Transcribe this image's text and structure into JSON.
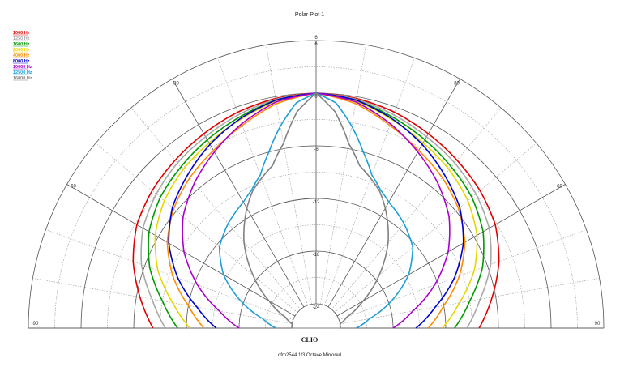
{
  "chart_data": {
    "type": "polar",
    "title": "Polar Plot 1",
    "footer": "dfm2544  1/3 Octave  Mirrored",
    "logo": "CLIO",
    "radial_ticks": [
      "6",
      "0",
      "-6",
      "-12",
      "-18",
      "-24"
    ],
    "outer_label": "6",
    "angle_labels": [
      {
        "angle": -90,
        "label": "-90"
      },
      {
        "angle": -60,
        "label": "-60"
      },
      {
        "angle": -30,
        "label": "-30"
      },
      {
        "angle": 30,
        "label": "30"
      },
      {
        "angle": 60,
        "label": "60"
      },
      {
        "angle": 90,
        "label": "90"
      }
    ],
    "r_range_db": [
      -24,
      6
    ],
    "angle_range_deg": [
      -90,
      90
    ],
    "mirrored": true,
    "grid": true,
    "legend_position": "top-left",
    "series": [
      {
        "name": "1000 Hz",
        "color": "#e00000",
        "angles": [
          0,
          10,
          20,
          30,
          40,
          50,
          60,
          70,
          80,
          90
        ],
        "values": [
          0,
          -0.2,
          -0.6,
          -1.2,
          -1.8,
          -2.4,
          -3.2,
          -4.6,
          -6.4,
          -8.2
        ]
      },
      {
        "name": "1250 Hz",
        "color": "#a8a8a8",
        "angles": [
          0,
          10,
          20,
          30,
          40,
          50,
          60,
          70,
          80,
          90
        ],
        "values": [
          0,
          -0.3,
          -0.9,
          -1.6,
          -2.2,
          -3.0,
          -4.0,
          -5.6,
          -7.8,
          -9.6
        ]
      },
      {
        "name": "1600 Hz",
        "color": "#009900",
        "angles": [
          0,
          10,
          20,
          30,
          40,
          50,
          60,
          70,
          80,
          90
        ],
        "values": [
          0,
          -0.4,
          -1.2,
          -2.0,
          -2.8,
          -3.6,
          -4.8,
          -6.6,
          -9.0,
          -11.0
        ]
      },
      {
        "name": "2000 Hz",
        "color": "#e6d600",
        "angles": [
          0,
          10,
          20,
          30,
          40,
          50,
          60,
          70,
          80,
          90
        ],
        "values": [
          0,
          -0.5,
          -1.5,
          -2.4,
          -3.2,
          -4.2,
          -5.6,
          -7.6,
          -10.2,
          -12.4
        ]
      },
      {
        "name": "4000 Hz",
        "color": "#ff8c00",
        "angles": [
          0,
          10,
          20,
          30,
          40,
          50,
          60,
          70,
          80,
          90
        ],
        "values": [
          0,
          -0.8,
          -2.2,
          -3.4,
          -4.4,
          -5.6,
          -7.2,
          -9.4,
          -12.0,
          -14.0
        ]
      },
      {
        "name": "8000 Hz",
        "color": "#0000cc",
        "angles": [
          0,
          10,
          20,
          30,
          40,
          50,
          60,
          70,
          80,
          90
        ],
        "values": [
          0,
          -0.4,
          -1.4,
          -2.6,
          -4.0,
          -5.4,
          -7.4,
          -10.0,
          -13.0,
          -15.4
        ]
      },
      {
        "name": "10000 Hz",
        "color": "#aa00cc",
        "angles": [
          0,
          10,
          20,
          30,
          40,
          50,
          60,
          70,
          80,
          90
        ],
        "values": [
          0,
          -0.6,
          -2.0,
          -3.6,
          -5.2,
          -7.0,
          -9.4,
          -12.4,
          -15.6,
          -18.0
        ]
      },
      {
        "name": "12500 Hz",
        "color": "#1e9fd8",
        "angles": [
          0,
          5,
          10,
          15,
          20,
          25,
          30,
          40,
          50,
          60,
          70,
          80,
          90
        ],
        "values": [
          0,
          -1.0,
          -3.4,
          -6.0,
          -8.2,
          -9.4,
          -10.2,
          -11.2,
          -12.4,
          -14.6,
          -17.6,
          -20.6,
          -22.2
        ]
      },
      {
        "name": "16000 Hz",
        "color": "#808080",
        "angles": [
          0,
          5,
          10,
          15,
          20,
          25,
          30,
          40,
          50,
          60,
          70,
          80,
          90
        ],
        "values": [
          0,
          -2.0,
          -5.4,
          -7.6,
          -8.6,
          -9.6,
          -11.0,
          -14.0,
          -17.4,
          -20.6,
          -23.0,
          -24.0,
          -24.0
        ]
      }
    ]
  }
}
